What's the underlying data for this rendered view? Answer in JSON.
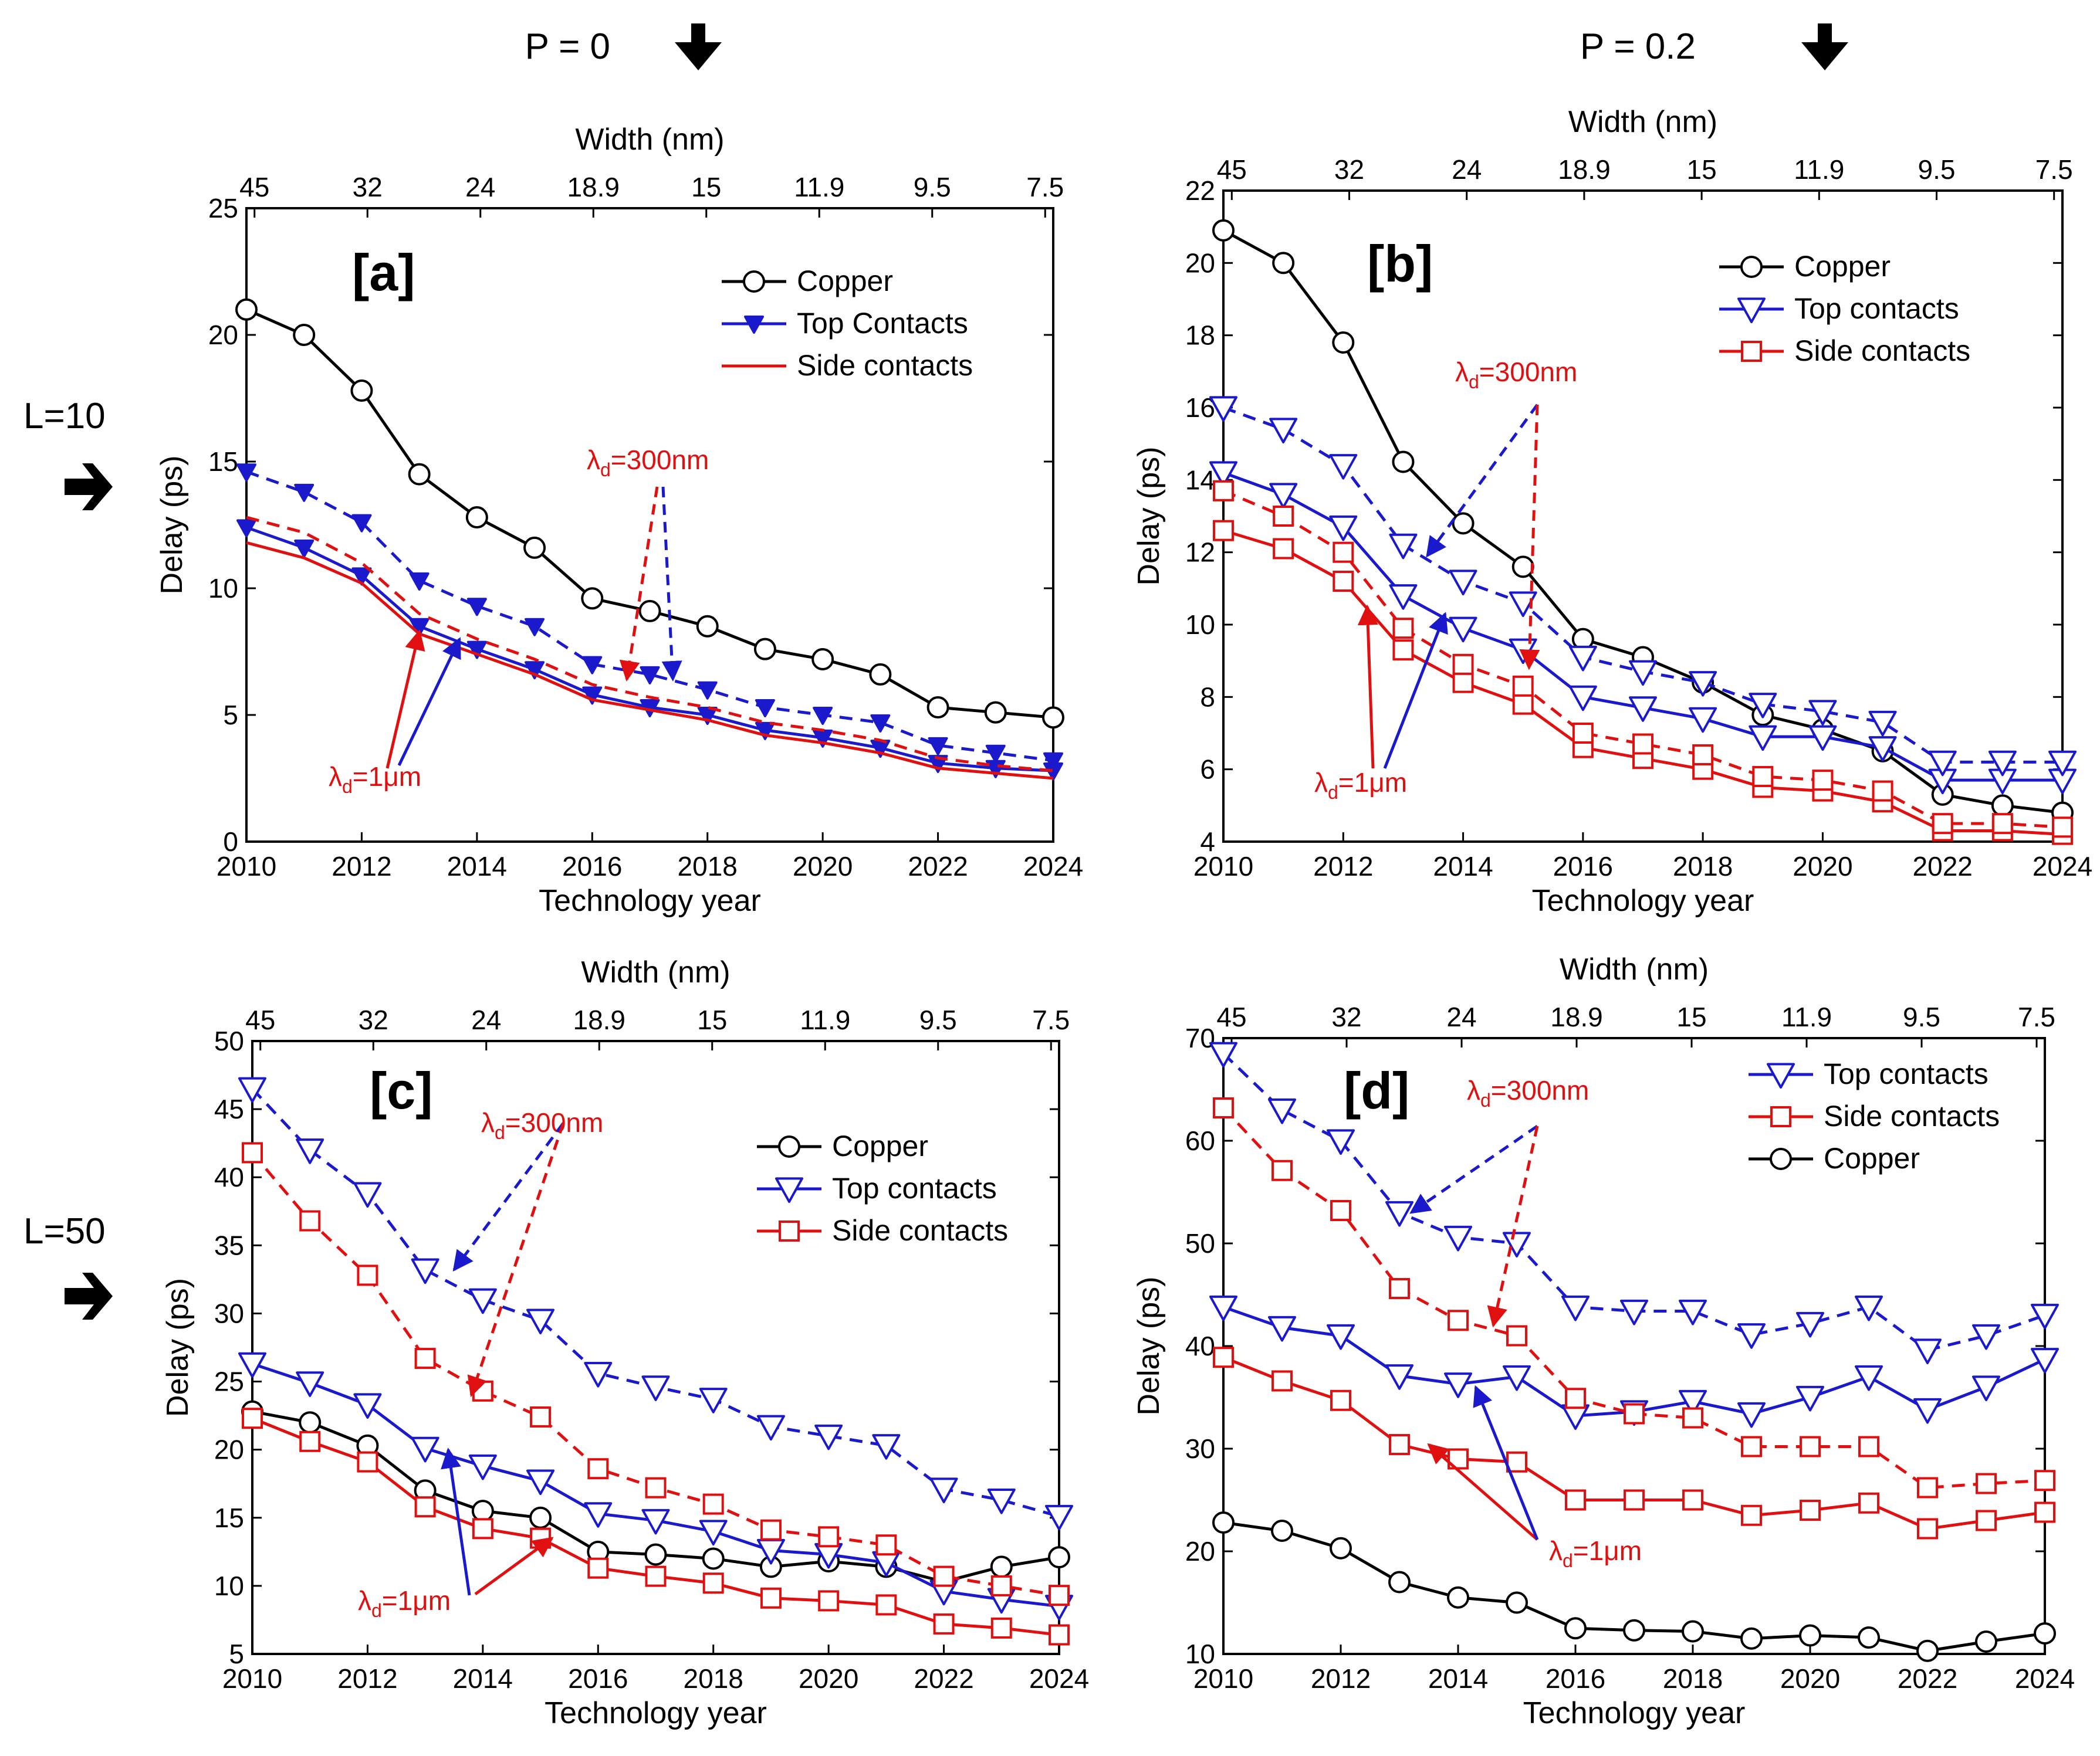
{
  "figure": {
    "column_headers": [
      {
        "text": "P = 0",
        "icon": "down-arrow-icon"
      },
      {
        "text": "P = 0.2",
        "icon": "down-arrow-icon"
      }
    ],
    "row_headers": [
      {
        "text": "L=10",
        "icon": "right-arrow-icon"
      },
      {
        "text": "L=50",
        "icon": "right-arrow-icon"
      }
    ]
  },
  "chart_data": [
    {
      "id": "a",
      "type": "line",
      "panel_label": "[a]",
      "xlabel": "Technology year",
      "ylabel": "Delay (ps)",
      "top_axis_label": "Width (nm)",
      "x": [
        2010,
        2011,
        2012,
        2013,
        2014,
        2015,
        2016,
        2017,
        2018,
        2019,
        2020,
        2021,
        2022,
        2023,
        2024
      ],
      "xlim": [
        2010,
        2024
      ],
      "ylim": [
        0,
        25
      ],
      "x_ticks": [
        "2010",
        "2012",
        "2014",
        "2016",
        "2018",
        "2020",
        "2022",
        "2024"
      ],
      "y_ticks": [
        "0",
        "5",
        "10",
        "15",
        "20",
        "25"
      ],
      "top_ticks": [
        "45",
        "32",
        "24",
        "18.9",
        "15",
        "11.9",
        "9.5",
        "7.5"
      ],
      "series": [
        {
          "name": "Copper",
          "color": "#000000",
          "marker": "circle",
          "style": "solid",
          "values": [
            21,
            20,
            17.8,
            14.5,
            12.8,
            11.6,
            9.6,
            9.1,
            8.5,
            7.6,
            7.2,
            6.6,
            5.3,
            5.1,
            4.9
          ]
        },
        {
          "name": "Top Contacts",
          "color": "#1a1acc",
          "marker": "tri-down-filled",
          "style": "solid",
          "values": [
            12.4,
            11.6,
            10.5,
            8.5,
            7.6,
            6.8,
            5.8,
            5.3,
            5.0,
            4.4,
            4.1,
            3.7,
            3.1,
            2.9,
            2.8
          ]
        },
        {
          "name": "Top Contacts 300nm",
          "color": "#1a1acc",
          "marker": "tri-down-filled",
          "style": "dashed",
          "values": [
            14.6,
            13.8,
            12.6,
            10.3,
            9.3,
            8.5,
            7.0,
            6.6,
            6.0,
            5.3,
            5.0,
            4.7,
            3.8,
            3.5,
            3.2
          ]
        },
        {
          "name": "Side contacts",
          "color": "#e01010",
          "marker": "none",
          "style": "solid",
          "values": [
            11.8,
            11.2,
            10.2,
            8.2,
            7.4,
            6.6,
            5.6,
            5.2,
            4.8,
            4.2,
            3.9,
            3.5,
            2.9,
            2.7,
            2.5
          ]
        },
        {
          "name": "Side contacts 300nm",
          "color": "#e01010",
          "marker": "none",
          "style": "dashed",
          "values": [
            12.8,
            12.2,
            11.0,
            9.0,
            8.0,
            7.2,
            6.2,
            5.7,
            5.3,
            4.7,
            4.4,
            4.0,
            3.3,
            3.0,
            2.8
          ]
        }
      ],
      "legend": {
        "entries": [
          "Copper",
          "Top Contacts",
          "Side contacts"
        ],
        "position": "top-right"
      },
      "annotations": [
        {
          "text": "λ",
          "sub": "d",
          "rest": "=300nm"
        },
        {
          "text": "λ",
          "sub": "d",
          "rest": "=1μm"
        }
      ]
    },
    {
      "id": "b",
      "type": "line",
      "panel_label": "[b]",
      "xlabel": "Technology year",
      "ylabel": "Delay (ps)",
      "top_axis_label": "Width (nm)",
      "x": [
        2010,
        2011,
        2012,
        2013,
        2014,
        2015,
        2016,
        2017,
        2018,
        2019,
        2020,
        2021,
        2022,
        2023,
        2024
      ],
      "xlim": [
        2010,
        2024
      ],
      "ylim": [
        4,
        22
      ],
      "x_ticks": [
        "2010",
        "2012",
        "2014",
        "2016",
        "2018",
        "2020",
        "2022",
        "2024"
      ],
      "y_ticks": [
        "4",
        "6",
        "8",
        "10",
        "12",
        "14",
        "16",
        "18",
        "20",
        "22"
      ],
      "top_ticks": [
        "45",
        "32",
        "24",
        "18.9",
        "15",
        "11.9",
        "9.5",
        "7.5"
      ],
      "series": [
        {
          "name": "Copper",
          "color": "#000000",
          "marker": "circle",
          "style": "solid",
          "values": [
            20.9,
            20.0,
            17.8,
            14.5,
            12.8,
            11.6,
            9.6,
            9.1,
            8.4,
            7.5,
            7.1,
            6.5,
            5.3,
            5.0,
            4.8
          ]
        },
        {
          "name": "Top contacts",
          "color": "#1a1acc",
          "marker": "tri-down",
          "style": "solid",
          "values": [
            14.2,
            13.6,
            12.7,
            10.8,
            9.9,
            9.3,
            8.0,
            7.7,
            7.4,
            6.9,
            6.9,
            6.6,
            5.7,
            5.7,
            5.7
          ]
        },
        {
          "name": "Top contacts 300nm",
          "color": "#1a1acc",
          "marker": "tri-down",
          "style": "dashed",
          "values": [
            16.0,
            15.4,
            14.4,
            12.2,
            11.2,
            10.6,
            9.1,
            8.7,
            8.4,
            7.8,
            7.6,
            7.3,
            6.2,
            6.2,
            6.2
          ]
        },
        {
          "name": "Side contacts",
          "color": "#e01010",
          "marker": "square",
          "style": "solid",
          "values": [
            12.6,
            12.1,
            11.2,
            9.3,
            8.4,
            7.8,
            6.6,
            6.3,
            6.0,
            5.5,
            5.4,
            5.1,
            4.3,
            4.3,
            4.2
          ]
        },
        {
          "name": "Side contacts 300nm",
          "color": "#e01010",
          "marker": "square",
          "style": "dashed",
          "values": [
            13.7,
            13.0,
            12.0,
            9.9,
            8.9,
            8.3,
            7.0,
            6.7,
            6.4,
            5.8,
            5.7,
            5.4,
            4.5,
            4.5,
            4.4
          ]
        }
      ],
      "legend": {
        "entries": [
          "Copper",
          "Top contacts",
          "Side contacts"
        ],
        "position": "top-right"
      },
      "annotations": [
        {
          "text": "λ",
          "sub": "d",
          "rest": "=300nm"
        },
        {
          "text": "λ",
          "sub": "d",
          "rest": "=1μm"
        }
      ]
    },
    {
      "id": "c",
      "type": "line",
      "panel_label": "[c]",
      "xlabel": "Technology year",
      "ylabel": "Delay (ps)",
      "top_axis_label": "Width (nm)",
      "x": [
        2010,
        2011,
        2012,
        2013,
        2014,
        2015,
        2016,
        2017,
        2018,
        2019,
        2020,
        2021,
        2022,
        2023,
        2024
      ],
      "xlim": [
        2010,
        2024
      ],
      "ylim": [
        5,
        50
      ],
      "x_ticks": [
        "2010",
        "2012",
        "2014",
        "2016",
        "2018",
        "2020",
        "2022",
        "2024"
      ],
      "y_ticks": [
        "5",
        "10",
        "15",
        "20",
        "25",
        "30",
        "35",
        "40",
        "45",
        "50"
      ],
      "top_ticks": [
        "45",
        "32",
        "24",
        "18.9",
        "15",
        "11.9",
        "9.5",
        "7.5"
      ],
      "series": [
        {
          "name": "Copper",
          "color": "#000000",
          "marker": "circle",
          "style": "solid",
          "values": [
            22.8,
            22.0,
            20.3,
            17.0,
            15.5,
            15.0,
            12.5,
            12.3,
            12.0,
            11.4,
            11.8,
            11.4,
            10.3,
            11.4,
            12.1
          ]
        },
        {
          "name": "Top contacts",
          "color": "#1a1acc",
          "marker": "tri-down",
          "style": "solid",
          "values": [
            26.3,
            24.9,
            23.3,
            20.1,
            18.8,
            17.7,
            15.3,
            14.8,
            14.0,
            12.6,
            12.3,
            11.7,
            9.6,
            9.0,
            8.5
          ]
        },
        {
          "name": "Top contacts 300nm",
          "color": "#1a1acc",
          "marker": "tri-down",
          "style": "dashed",
          "values": [
            46.5,
            42.0,
            38.8,
            33.2,
            31.0,
            29.5,
            25.6,
            24.6,
            23.7,
            21.7,
            21.0,
            20.3,
            17.1,
            16.3,
            15.1
          ]
        },
        {
          "name": "Side contacts",
          "color": "#e01010",
          "marker": "square",
          "style": "solid",
          "values": [
            22.3,
            20.6,
            19.1,
            15.8,
            14.2,
            13.5,
            11.3,
            10.7,
            10.2,
            9.1,
            8.9,
            8.6,
            7.2,
            6.9,
            6.4
          ]
        },
        {
          "name": "Side contacts 300nm",
          "color": "#e01010",
          "marker": "square",
          "style": "dashed",
          "values": [
            41.8,
            36.8,
            32.8,
            26.7,
            24.3,
            22.4,
            18.6,
            17.2,
            16.0,
            14.1,
            13.6,
            13.0,
            10.7,
            10.0,
            9.3
          ]
        }
      ],
      "legend": {
        "entries": [
          "Copper",
          "Top contacts",
          "Side contacts"
        ],
        "position": "top-right"
      },
      "annotations": [
        {
          "text": "λ",
          "sub": "d",
          "rest": "=300nm"
        },
        {
          "text": "λ",
          "sub": "d",
          "rest": "=1μm"
        }
      ]
    },
    {
      "id": "d",
      "type": "line",
      "panel_label": "[d]",
      "xlabel": "Technology year",
      "ylabel": "Delay (ps)",
      "top_axis_label": "Width (nm)",
      "x": [
        2010,
        2011,
        2012,
        2013,
        2014,
        2015,
        2016,
        2017,
        2018,
        2019,
        2020,
        2021,
        2022,
        2023,
        2024
      ],
      "xlim": [
        2010,
        2024
      ],
      "ylim": [
        10,
        70
      ],
      "x_ticks": [
        "2010",
        "2012",
        "2014",
        "2016",
        "2018",
        "2020",
        "2022",
        "2024"
      ],
      "y_ticks": [
        "10",
        "20",
        "30",
        "40",
        "50",
        "60",
        "70"
      ],
      "top_ticks": [
        "45",
        "32",
        "24",
        "18.9",
        "15",
        "11.9",
        "9.5",
        "7.5"
      ],
      "series": [
        {
          "name": "Top contacts",
          "color": "#1a1acc",
          "marker": "tri-down",
          "style": "solid",
          "values": [
            43.8,
            41.8,
            41.0,
            37.1,
            36.3,
            37.0,
            33.2,
            33.6,
            34.6,
            33.4,
            35.0,
            37.0,
            33.8,
            36.0,
            38.7
          ]
        },
        {
          "name": "Top contacts 300nm",
          "color": "#1a1acc",
          "marker": "tri-down",
          "style": "dashed",
          "values": [
            68.5,
            63.0,
            60.0,
            53.0,
            50.6,
            50.0,
            43.8,
            43.4,
            43.4,
            41.1,
            42.2,
            43.8,
            39.6,
            41.0,
            43.0
          ]
        },
        {
          "name": "Side contacts",
          "color": "#e01010",
          "marker": "square",
          "style": "solid",
          "values": [
            38.9,
            36.6,
            34.7,
            30.4,
            29.0,
            28.7,
            25.0,
            25.0,
            25.0,
            23.5,
            24.0,
            24.7,
            22.2,
            23.0,
            23.8
          ]
        },
        {
          "name": "Side contacts 300nm",
          "color": "#e01010",
          "marker": "square",
          "style": "dashed",
          "values": [
            63.2,
            57.1,
            53.2,
            45.6,
            42.5,
            41.0,
            34.9,
            33.4,
            33.0,
            30.2,
            30.2,
            30.2,
            26.2,
            26.6,
            26.9
          ]
        },
        {
          "name": "Copper",
          "color": "#000000",
          "marker": "circle",
          "style": "solid",
          "values": [
            22.8,
            22.0,
            20.3,
            17.0,
            15.5,
            15.0,
            12.5,
            12.3,
            12.2,
            11.5,
            11.8,
            11.6,
            10.3,
            11.2,
            12.0
          ]
        }
      ],
      "legend": {
        "entries": [
          "Top contacts",
          "Side contacts",
          "Copper"
        ],
        "position": "top-right"
      },
      "annotations": [
        {
          "text": "λ",
          "sub": "d",
          "rest": "=300nm"
        },
        {
          "text": "λ",
          "sub": "d",
          "rest": "=1μm"
        }
      ]
    }
  ]
}
